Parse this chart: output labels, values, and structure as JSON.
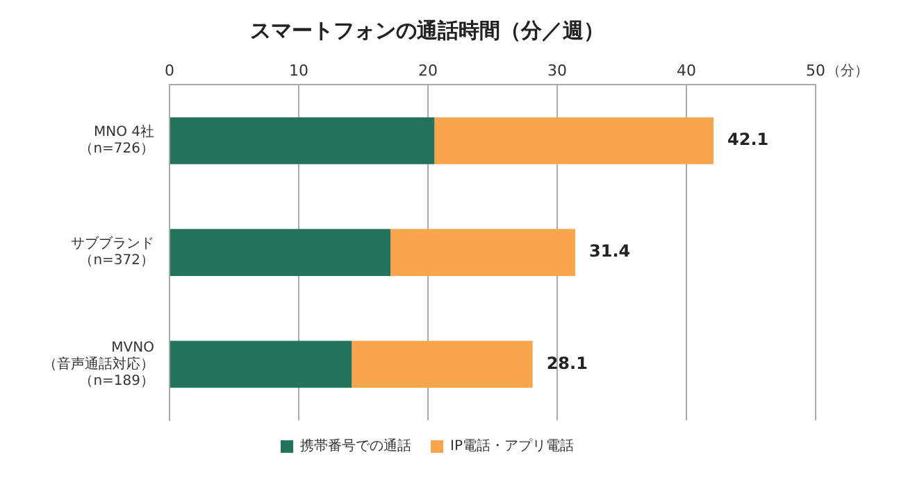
{
  "chart_data": {
    "type": "bar",
    "orientation": "horizontal",
    "stacked": true,
    "title": "スマートフォンの通話時間（分／週）",
    "xlabel": "（分）",
    "categories": [
      "MNO 4社（n=726）",
      "サブブランド（n=372）",
      "MVNO（音声通話対応）（n=189）"
    ],
    "series": [
      {
        "name": "携帯番号での通話",
        "color": "#23735c",
        "values": [
          20.5,
          17.1,
          14.1
        ]
      },
      {
        "name": "IP電話・アプリ電話",
        "color": "#f8a54e",
        "values": [
          21.6,
          14.3,
          14.0
        ]
      }
    ],
    "totals": [
      "42.1",
      "31.4",
      "28.1"
    ],
    "xlim": [
      0,
      50
    ],
    "xticks": [
      0,
      10,
      20,
      30,
      40,
      50
    ],
    "grid": "x",
    "legend": "bottom"
  }
}
